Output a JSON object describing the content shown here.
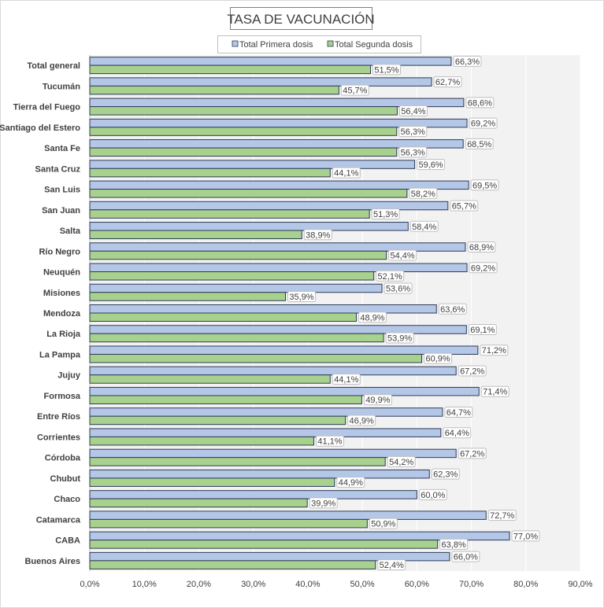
{
  "colors": {
    "primera_fill": "#b4c7e7",
    "segunda_fill": "#a9d18e",
    "bar_stroke": "#2e3b57",
    "plot_bg": "#f2f2f2",
    "gridline": "#ffffff",
    "label_border": "#bfbfbf"
  },
  "chart_data": {
    "type": "bar",
    "orientation": "horizontal",
    "title": "TASA DE VACUNACIÓN",
    "xlabel": "",
    "ylabel": "",
    "xlim": [
      0,
      90
    ],
    "x_ticks": [
      0,
      10,
      20,
      30,
      40,
      50,
      60,
      70,
      80,
      90
    ],
    "x_tick_labels": [
      "0,0%",
      "10,0%",
      "20,0%",
      "30,0%",
      "40,0%",
      "50,0%",
      "60,0%",
      "70,0%",
      "80,0%",
      "90,0%"
    ],
    "grid": true,
    "legend_position": "top",
    "categories": [
      "Total general",
      "Tucumán",
      "Tierra del Fuego",
      "Santiago del Estero",
      "Santa Fe",
      "Santa Cruz",
      "San Luis",
      "San Juan",
      "Salta",
      "Río Negro",
      "Neuquén",
      "Misiones",
      "Mendoza",
      "La Rioja",
      "La Pampa",
      "Jujuy",
      "Formosa",
      "Entre Ríos",
      "Corrientes",
      "Córdoba",
      "Chubut",
      "Chaco",
      "Catamarca",
      "CABA",
      "Buenos Aires"
    ],
    "series": [
      {
        "name": "Total Primera dosis",
        "values": [
          66.3,
          62.7,
          68.6,
          69.2,
          68.5,
          59.6,
          69.5,
          65.7,
          58.4,
          68.9,
          69.2,
          53.6,
          63.6,
          69.1,
          71.2,
          67.2,
          71.4,
          64.7,
          64.4,
          67.2,
          62.3,
          60.0,
          72.7,
          77.0,
          66.0
        ],
        "labels": [
          "66,3%",
          "62,7%",
          "68,6%",
          "69,2%",
          "68,5%",
          "59,6%",
          "69,5%",
          "65,7%",
          "58,4%",
          "68,9%",
          "69,2%",
          "53,6%",
          "63,6%",
          "69,1%",
          "71,2%",
          "67,2%",
          "71,4%",
          "64,7%",
          "64,4%",
          "67,2%",
          "62,3%",
          "60,0%",
          "72,7%",
          "77,0%",
          "66,0%"
        ]
      },
      {
        "name": "Total Segunda dosis",
        "values": [
          51.5,
          45.7,
          56.4,
          56.3,
          56.3,
          44.1,
          58.2,
          51.3,
          38.9,
          54.4,
          52.1,
          35.9,
          48.9,
          53.9,
          60.9,
          44.1,
          49.9,
          46.9,
          41.1,
          54.2,
          44.9,
          39.9,
          50.9,
          63.8,
          52.4
        ],
        "labels": [
          "51,5%",
          "45,7%",
          "56,4%",
          "56,3%",
          "56,3%",
          "44,1%",
          "58,2%",
          "51,3%",
          "38,9%",
          "54,4%",
          "52,1%",
          "35,9%",
          "48,9%",
          "53,9%",
          "60,9%",
          "44,1%",
          "49,9%",
          "46,9%",
          "41,1%",
          "54,2%",
          "44,9%",
          "39,9%",
          "50,9%",
          "63,8%",
          "52,4%"
        ]
      }
    ]
  }
}
